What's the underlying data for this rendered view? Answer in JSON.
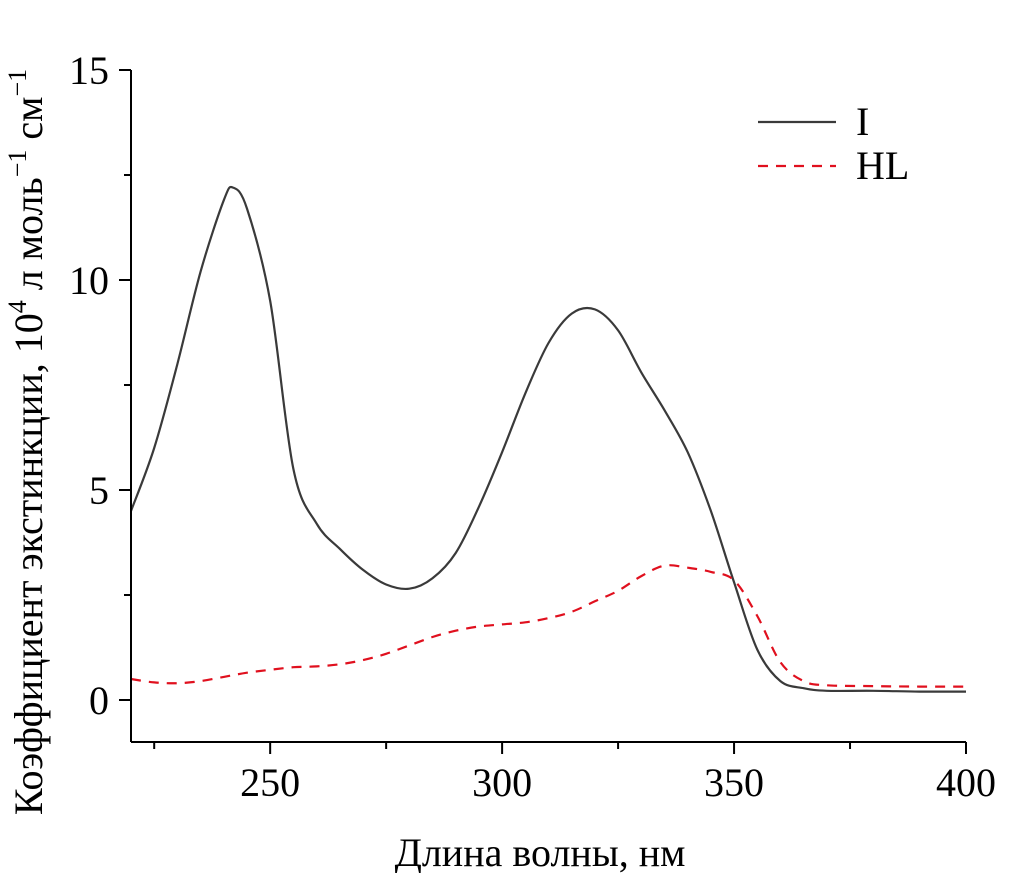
{
  "chart_data": {
    "type": "line",
    "xlabel": "Длина волны, нм",
    "ylabel": {
      "main": "Коэффициент экстинкции, 10",
      "sup1": "4",
      "mid": " л моль",
      "sup2": "−1",
      "end": " см",
      "sup3": "−1"
    },
    "xlim": [
      220,
      400
    ],
    "ylim": [
      -1,
      15
    ],
    "xticks": [
      250,
      300,
      350,
      400
    ],
    "xtick_labels": [
      "250",
      "300",
      "350",
      "400"
    ],
    "yticks": [
      0,
      5,
      10,
      15
    ],
    "ytick_labels": [
      "0",
      "5",
      "10",
      "15"
    ],
    "legend_position": "top-right",
    "series": [
      {
        "name": "I",
        "color": "#3a3a3a",
        "dash": "solid",
        "x": [
          220,
          225,
          230,
          235,
          240,
          242,
          245,
          250,
          255,
          260,
          265,
          270,
          275,
          280,
          285,
          290,
          295,
          300,
          305,
          310,
          315,
          320,
          325,
          330,
          335,
          340,
          345,
          350,
          355,
          360,
          365,
          370,
          380,
          390,
          400
        ],
        "y": [
          4.5,
          6.0,
          8.0,
          10.2,
          11.9,
          12.2,
          11.7,
          9.5,
          5.5,
          4.2,
          3.6,
          3.1,
          2.75,
          2.65,
          2.9,
          3.5,
          4.6,
          5.9,
          7.3,
          8.5,
          9.2,
          9.3,
          8.8,
          7.8,
          6.9,
          5.9,
          4.5,
          2.8,
          1.2,
          0.45,
          0.28,
          0.22,
          0.22,
          0.2,
          0.2
        ]
      },
      {
        "name": "HL",
        "color": "#e0101e",
        "dash": "dashed",
        "x": [
          220,
          225,
          230,
          235,
          240,
          245,
          250,
          255,
          260,
          265,
          270,
          275,
          280,
          285,
          290,
          295,
          300,
          305,
          310,
          315,
          320,
          325,
          330,
          335,
          340,
          345,
          350,
          355,
          360,
          365,
          370,
          380,
          390,
          400
        ],
        "y": [
          0.5,
          0.42,
          0.4,
          0.45,
          0.55,
          0.65,
          0.72,
          0.78,
          0.8,
          0.85,
          0.95,
          1.1,
          1.3,
          1.5,
          1.65,
          1.75,
          1.8,
          1.85,
          1.95,
          2.1,
          2.35,
          2.6,
          2.95,
          3.2,
          3.15,
          3.05,
          2.85,
          2.0,
          0.9,
          0.45,
          0.35,
          0.33,
          0.32,
          0.32
        ]
      }
    ]
  }
}
